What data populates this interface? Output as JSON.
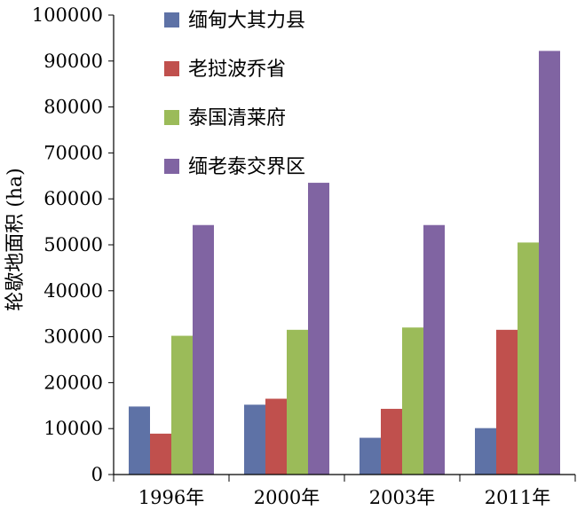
{
  "chart_data": {
    "type": "bar",
    "title": "",
    "xlabel": "",
    "ylabel": "轮歇地面积 (ha)",
    "categories": [
      "1996年",
      "2000年",
      "2003年",
      "2011年"
    ],
    "ylim": [
      0,
      100000
    ],
    "yticks": [
      0,
      10000,
      20000,
      30000,
      40000,
      50000,
      60000,
      70000,
      80000,
      90000,
      100000
    ],
    "grid": false,
    "legend_position": "top-left",
    "series": [
      {
        "name": "缅甸大其力县",
        "color": "#5E72A6",
        "values": [
          14800,
          15200,
          8000,
          10100
        ]
      },
      {
        "name": "老挝波乔省",
        "color": "#C0504D",
        "values": [
          8900,
          16500,
          14300,
          31500
        ]
      },
      {
        "name": "泰国清莱府",
        "color": "#9BBB59",
        "values": [
          30200,
          31500,
          32000,
          50500
        ]
      },
      {
        "name": "缅老泰交界区",
        "color": "#8064A2",
        "values": [
          54300,
          63500,
          54300,
          92200
        ]
      }
    ]
  }
}
